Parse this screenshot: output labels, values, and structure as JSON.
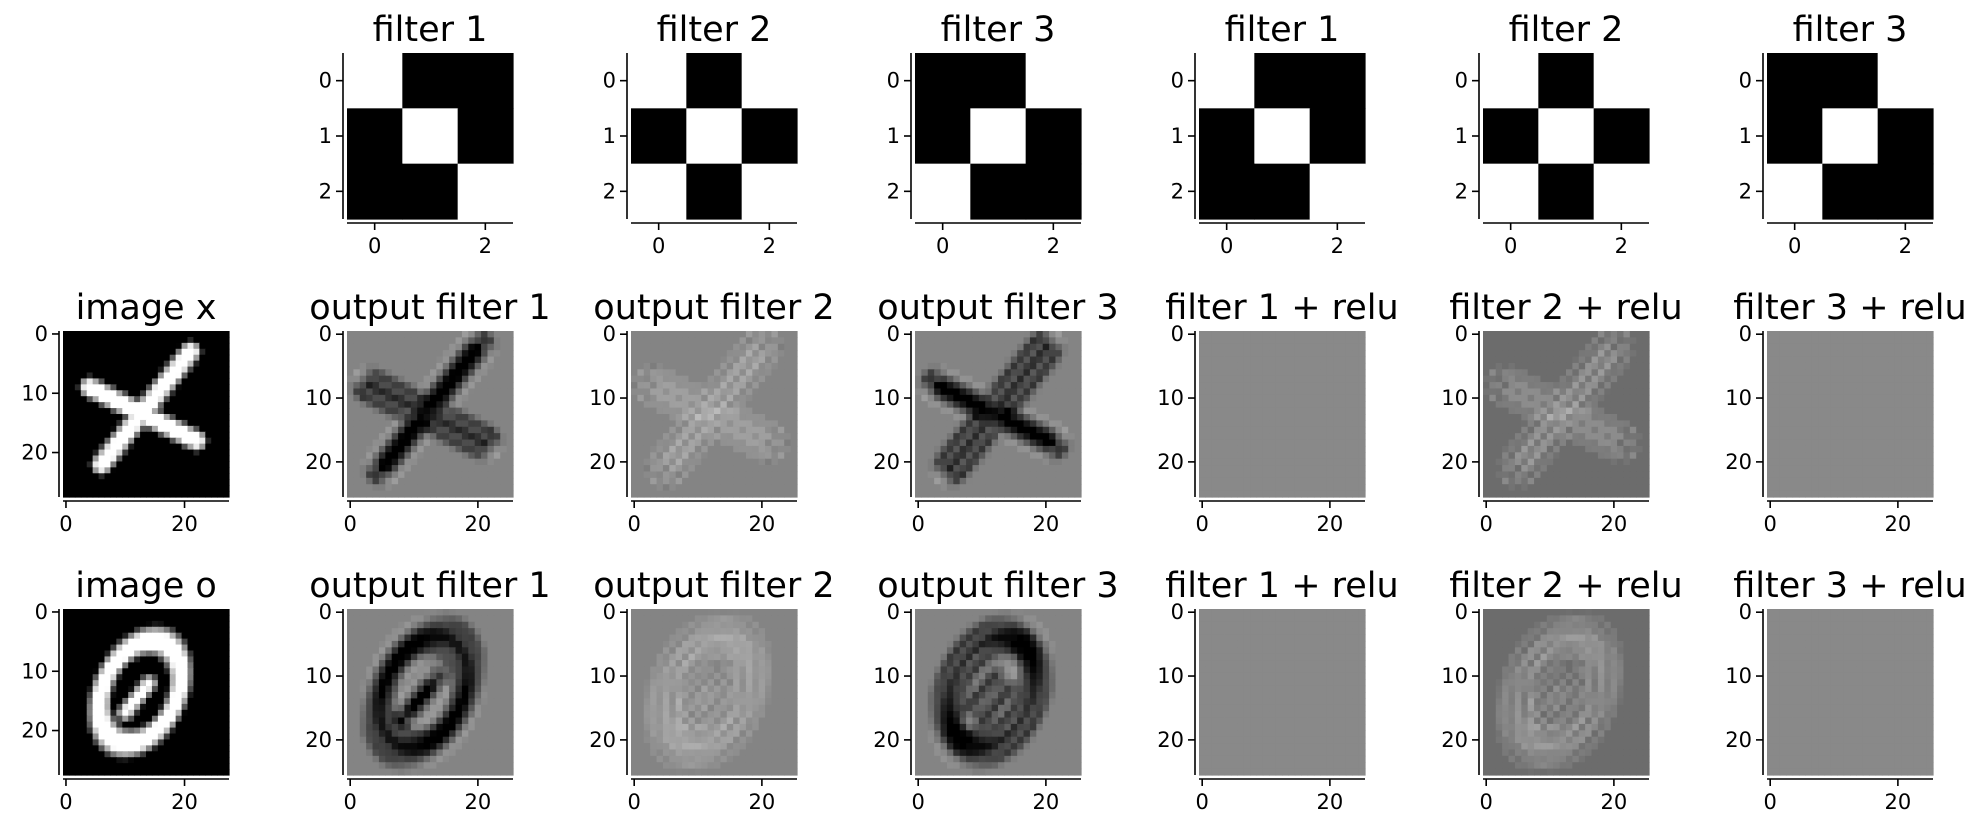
{
  "chart_data": [
    {
      "id": "filter-1-a",
      "type": "heatmap",
      "title": "filter 1",
      "colormap": "gray",
      "z": [
        [
          1,
          0,
          0
        ],
        [
          0,
          1,
          0
        ],
        [
          0,
          0,
          1
        ]
      ],
      "vmin": 0,
      "vmax": 1,
      "xticks": [
        0,
        2
      ],
      "yticks": [
        0,
        1,
        2
      ],
      "xtick_labels": [
        "0",
        "2"
      ],
      "ytick_labels": [
        "0",
        "1",
        "2"
      ]
    },
    {
      "id": "filter-2-a",
      "type": "heatmap",
      "title": "filter 2",
      "colormap": "gray",
      "z": [
        [
          1,
          0,
          1
        ],
        [
          0,
          1,
          0
        ],
        [
          1,
          0,
          1
        ]
      ],
      "vmin": 0,
      "vmax": 1,
      "xticks": [
        0,
        2
      ],
      "yticks": [
        0,
        1,
        2
      ],
      "xtick_labels": [
        "0",
        "2"
      ],
      "ytick_labels": [
        "0",
        "1",
        "2"
      ]
    },
    {
      "id": "filter-3-a",
      "type": "heatmap",
      "title": "filter 3",
      "colormap": "gray",
      "z": [
        [
          0,
          0,
          1
        ],
        [
          0,
          1,
          0
        ],
        [
          1,
          0,
          0
        ]
      ],
      "vmin": 0,
      "vmax": 1,
      "xticks": [
        0,
        2
      ],
      "yticks": [
        0,
        1,
        2
      ],
      "xtick_labels": [
        "0",
        "2"
      ],
      "ytick_labels": [
        "0",
        "1",
        "2"
      ]
    },
    {
      "id": "filter-1-b",
      "type": "heatmap",
      "title": "filter 1",
      "colormap": "gray",
      "z": [
        [
          1,
          0,
          0
        ],
        [
          0,
          1,
          0
        ],
        [
          0,
          0,
          1
        ]
      ],
      "vmin": 0,
      "vmax": 1,
      "xticks": [
        0,
        2
      ],
      "yticks": [
        0,
        1,
        2
      ],
      "xtick_labels": [
        "0",
        "2"
      ],
      "ytick_labels": [
        "0",
        "1",
        "2"
      ]
    },
    {
      "id": "filter-2-b",
      "type": "heatmap",
      "title": "filter 2",
      "colormap": "gray",
      "z": [
        [
          1,
          0,
          1
        ],
        [
          0,
          1,
          0
        ],
        [
          1,
          0,
          1
        ]
      ],
      "vmin": 0,
      "vmax": 1,
      "xticks": [
        0,
        2
      ],
      "yticks": [
        0,
        1,
        2
      ],
      "xtick_labels": [
        "0",
        "2"
      ],
      "ytick_labels": [
        "0",
        "1",
        "2"
      ]
    },
    {
      "id": "filter-3-b",
      "type": "heatmap",
      "title": "filter 3",
      "colormap": "gray",
      "z": [
        [
          0,
          0,
          1
        ],
        [
          0,
          1,
          0
        ],
        [
          1,
          0,
          0
        ]
      ],
      "vmin": 0,
      "vmax": 1,
      "xticks": [
        0,
        2
      ],
      "yticks": [
        0,
        1,
        2
      ],
      "xtick_labels": [
        "0",
        "2"
      ],
      "ytick_labels": [
        "0",
        "1",
        "2"
      ]
    },
    {
      "id": "image-x",
      "type": "heatmap",
      "title": "image x",
      "colormap": "gray",
      "image_shape": [
        28,
        28
      ],
      "description_value_range": [
        0,
        1
      ],
      "content": "x",
      "xticks": [
        0,
        20
      ],
      "yticks": [
        0,
        10,
        20
      ],
      "xtick_labels": [
        "0",
        "20"
      ],
      "ytick_labels": [
        "0",
        "10",
        "20"
      ]
    },
    {
      "id": "output-filter-1-x",
      "type": "heatmap",
      "title": "output filter 1",
      "colormap": "gray",
      "image_shape": [
        26,
        26
      ],
      "content": "x",
      "mode": "conv1",
      "xticks": [
        0,
        20
      ],
      "yticks": [
        0,
        10,
        20
      ],
      "xtick_labels": [
        "0",
        "20"
      ],
      "ytick_labels": [
        "0",
        "10",
        "20"
      ]
    },
    {
      "id": "output-filter-2-x",
      "type": "heatmap",
      "title": "output filter 2",
      "colormap": "gray",
      "image_shape": [
        26,
        26
      ],
      "content": "x",
      "mode": "conv2",
      "xticks": [
        0,
        20
      ],
      "yticks": [
        0,
        10,
        20
      ],
      "xtick_labels": [
        "0",
        "20"
      ],
      "ytick_labels": [
        "0",
        "10",
        "20"
      ]
    },
    {
      "id": "output-filter-3-x",
      "type": "heatmap",
      "title": "output filter 3",
      "colormap": "gray",
      "image_shape": [
        26,
        26
      ],
      "content": "x",
      "mode": "conv3",
      "xticks": [
        0,
        20
      ],
      "yticks": [
        0,
        10,
        20
      ],
      "xtick_labels": [
        "0",
        "20"
      ],
      "ytick_labels": [
        "0",
        "10",
        "20"
      ]
    },
    {
      "id": "filter-1-relu-x",
      "type": "heatmap",
      "title": "filter 1 + relu",
      "colormap": "gray",
      "image_shape": [
        26,
        26
      ],
      "content": "x",
      "mode": "relu1",
      "xticks": [
        0,
        20
      ],
      "yticks": [
        0,
        10,
        20
      ],
      "xtick_labels": [
        "0",
        "20"
      ],
      "ytick_labels": [
        "0",
        "10",
        "20"
      ]
    },
    {
      "id": "filter-2-relu-x",
      "type": "heatmap",
      "title": "filter 2 + relu",
      "colormap": "gray",
      "image_shape": [
        26,
        26
      ],
      "content": "x",
      "mode": "relu2",
      "xticks": [
        0,
        20
      ],
      "yticks": [
        0,
        10,
        20
      ],
      "xtick_labels": [
        "0",
        "20"
      ],
      "ytick_labels": [
        "0",
        "10",
        "20"
      ]
    },
    {
      "id": "filter-3-relu-x",
      "type": "heatmap",
      "title": "filter 3 + relu",
      "colormap": "gray",
      "image_shape": [
        26,
        26
      ],
      "content": "x",
      "mode": "relu3",
      "xticks": [
        0,
        20
      ],
      "yticks": [
        0,
        10,
        20
      ],
      "xtick_labels": [
        "0",
        "20"
      ],
      "ytick_labels": [
        "0",
        "10",
        "20"
      ]
    },
    {
      "id": "image-o",
      "type": "heatmap",
      "title": "image o",
      "colormap": "gray",
      "image_shape": [
        28,
        28
      ],
      "content": "o",
      "xticks": [
        0,
        20
      ],
      "yticks": [
        0,
        10,
        20
      ],
      "xtick_labels": [
        "0",
        "20"
      ],
      "ytick_labels": [
        "0",
        "10",
        "20"
      ]
    },
    {
      "id": "output-filter-1-o",
      "type": "heatmap",
      "title": "output filter 1",
      "colormap": "gray",
      "image_shape": [
        26,
        26
      ],
      "content": "o",
      "mode": "conv1",
      "xticks": [
        0,
        20
      ],
      "yticks": [
        0,
        10,
        20
      ],
      "xtick_labels": [
        "0",
        "20"
      ],
      "ytick_labels": [
        "0",
        "10",
        "20"
      ]
    },
    {
      "id": "output-filter-2-o",
      "type": "heatmap",
      "title": "output filter 2",
      "colormap": "gray",
      "image_shape": [
        26,
        26
      ],
      "content": "o",
      "mode": "conv2",
      "xticks": [
        0,
        20
      ],
      "yticks": [
        0,
        10,
        20
      ],
      "xtick_labels": [
        "0",
        "20"
      ],
      "ytick_labels": [
        "0",
        "10",
        "20"
      ]
    },
    {
      "id": "output-filter-3-o",
      "type": "heatmap",
      "title": "output filter 3",
      "colormap": "gray",
      "image_shape": [
        26,
        26
      ],
      "content": "o",
      "mode": "conv3",
      "xticks": [
        0,
        20
      ],
      "yticks": [
        0,
        10,
        20
      ],
      "xtick_labels": [
        "0",
        "20"
      ],
      "ytick_labels": [
        "0",
        "10",
        "20"
      ]
    },
    {
      "id": "filter-1-relu-o",
      "type": "heatmap",
      "title": "filter 1 + relu",
      "colormap": "gray",
      "image_shape": [
        26,
        26
      ],
      "content": "o",
      "mode": "relu1",
      "xticks": [
        0,
        20
      ],
      "yticks": [
        0,
        10,
        20
      ],
      "xtick_labels": [
        "0",
        "20"
      ],
      "ytick_labels": [
        "0",
        "10",
        "20"
      ]
    },
    {
      "id": "filter-2-relu-o",
      "type": "heatmap",
      "title": "filter 2 + relu",
      "colormap": "gray",
      "image_shape": [
        26,
        26
      ],
      "content": "o",
      "mode": "relu2",
      "xticks": [
        0,
        20
      ],
      "yticks": [
        0,
        10,
        20
      ],
      "xtick_labels": [
        "0",
        "20"
      ],
      "ytick_labels": [
        "0",
        "10",
        "20"
      ]
    },
    {
      "id": "filter-3-relu-o",
      "type": "heatmap",
      "title": "filter 3 + relu",
      "colormap": "gray",
      "image_shape": [
        26,
        26
      ],
      "content": "o",
      "mode": "relu3",
      "xticks": [
        0,
        20
      ],
      "yticks": [
        0,
        10,
        20
      ],
      "xtick_labels": [
        "0",
        "20"
      ],
      "ytick_labels": [
        "0",
        "10",
        "20"
      ]
    }
  ]
}
